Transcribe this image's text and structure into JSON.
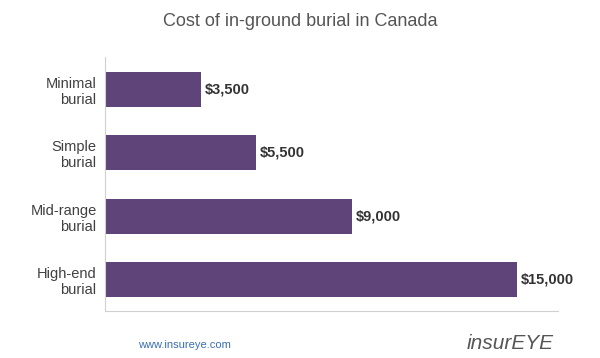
{
  "chart_data": {
    "type": "bar",
    "orientation": "horizontal",
    "title": "Cost of in-ground burial in Canada",
    "categories": [
      "Minimal burial",
      "Simple burial",
      "Mid-range burial",
      "High-end burial"
    ],
    "values": [
      3500,
      5500,
      9000,
      15000
    ],
    "value_labels": [
      "$3,500",
      "$5,500",
      "$9,000",
      "$15,000"
    ],
    "data_labels": true,
    "color": "#5e4479",
    "xlim": [
      0,
      16500
    ],
    "xticks": [],
    "tick_labels": "y",
    "grid": false,
    "annotations": [
      "www.insureye.com",
      "insurEYE"
    ]
  }
}
